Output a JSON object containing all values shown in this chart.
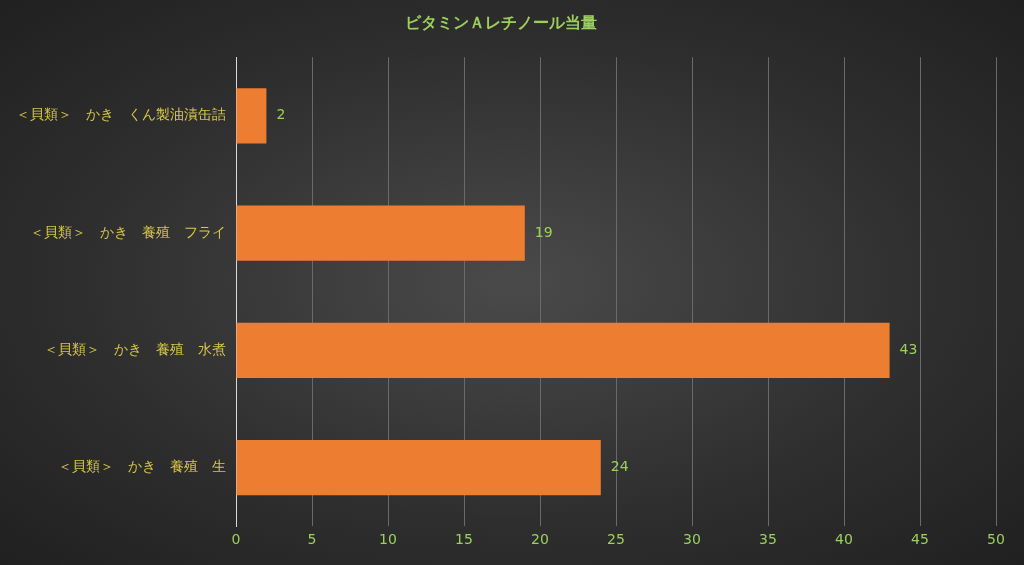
{
  "chart_data": {
    "type": "bar",
    "orientation": "horizontal",
    "title": "ビタミンＡレチノール当量",
    "categories": [
      "＜貝類＞　かき　くん製油漬缶詰",
      "＜貝類＞　かき　養殖　フライ",
      "＜貝類＞　かき　養殖　水煮",
      "＜貝類＞　かき　養殖　生"
    ],
    "values": [
      2,
      19,
      43,
      24
    ],
    "color": "#ed7d31",
    "xlim": [
      0,
      50
    ],
    "xticks": [
      0,
      5,
      10,
      15,
      20,
      25,
      30,
      35,
      40,
      45,
      50
    ],
    "grid": "x",
    "data_labels": true,
    "legend": false
  }
}
